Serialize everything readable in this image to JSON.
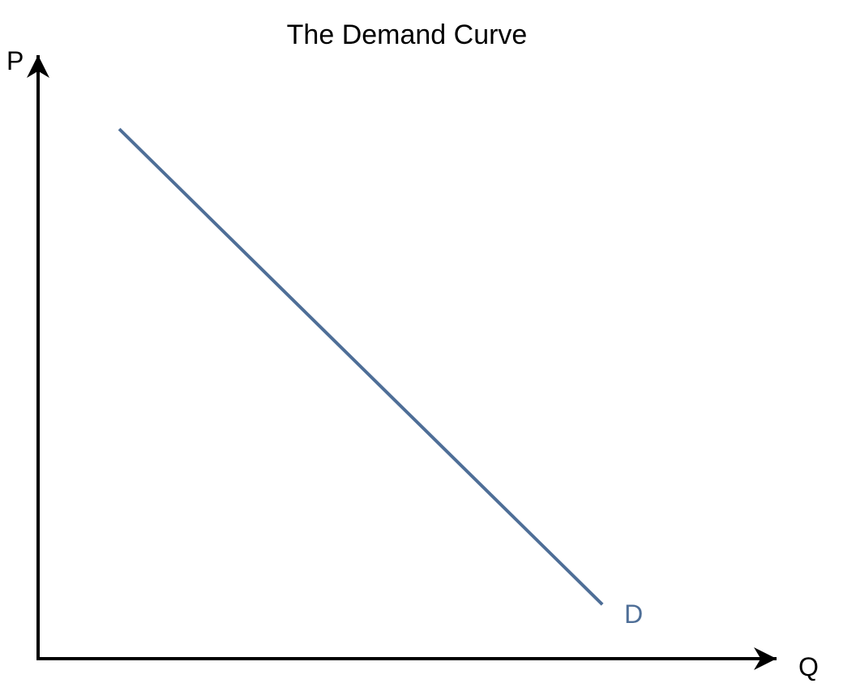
{
  "chart_data": {
    "type": "line",
    "title": "The Demand Curve",
    "xlabel": "Q",
    "ylabel": "P",
    "xlim": [
      0,
      10
    ],
    "ylim": [
      0,
      10
    ],
    "grid": false,
    "legend": "none",
    "series": [
      {
        "name": "D",
        "color": "#4e6e97",
        "x": [
          1.1,
          7.65
        ],
        "y": [
          8.8,
          0.9
        ]
      }
    ]
  }
}
